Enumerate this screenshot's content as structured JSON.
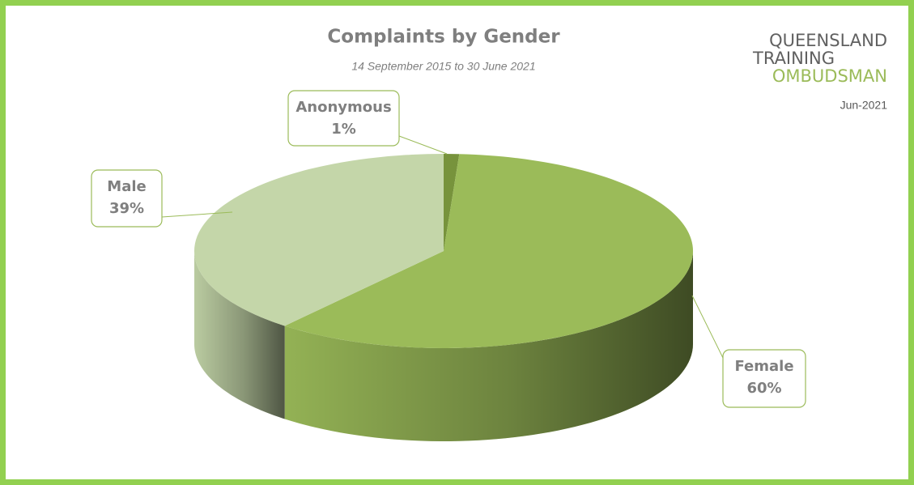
{
  "chart_data": {
    "type": "pie",
    "title": "Complaints by Gender",
    "subtitle": "14 September 2015 to 30 June 2021",
    "categories": [
      "Anonymous",
      "Female",
      "Male"
    ],
    "values": [
      1,
      60,
      39
    ],
    "value_labels": [
      "1%",
      "60%",
      "39%"
    ],
    "colors": [
      "#77933c",
      "#9bbb59",
      "#c4d6a9"
    ]
  },
  "logo": {
    "lines": [
      "QUEENSLAND",
      "TRAINING",
      "OMBUDSMAN"
    ],
    "date": "Jun-2021"
  }
}
